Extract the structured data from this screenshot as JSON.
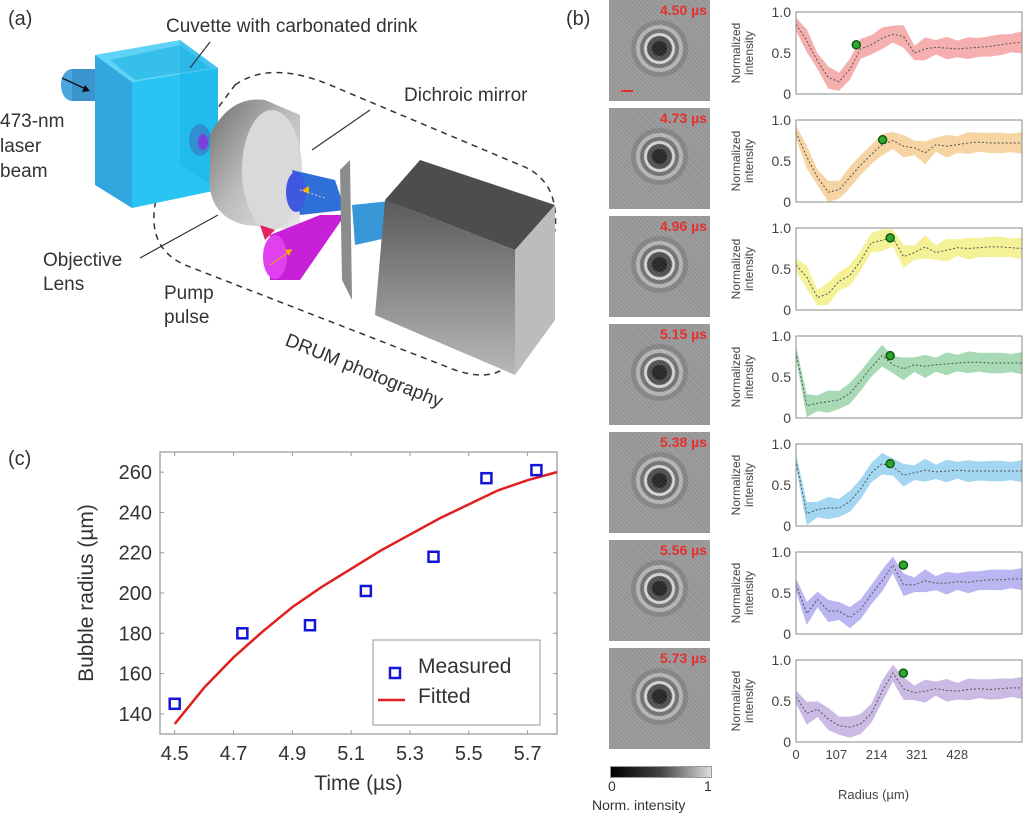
{
  "panel_a": {
    "label": "(a)",
    "callouts": {
      "cuvette": "Cuvette with carbonated drink",
      "laser_line1": "473-nm",
      "laser_line2": "laser",
      "laser_line3": "beam",
      "dichroic": "Dichroic mirror",
      "objective_line1": "Objective",
      "objective_line2": "Lens",
      "pump_line1": "Pump",
      "pump_line2": "pulse",
      "drum": "DRUM photography"
    },
    "colors": {
      "cuvette": "#29c4f2",
      "pump": "#d21ee0",
      "camera": "#7a7a7a",
      "beam": "#3aa0dc"
    }
  },
  "panel_b": {
    "label": "(b)",
    "ylabel_line1": "Normalized",
    "ylabel_line2": "intensity",
    "yticks": [
      "0",
      "0.5",
      "1.0"
    ],
    "xticks": [
      "0",
      "107",
      "214",
      "321",
      "428"
    ],
    "xlabel": "Radius (µm)",
    "colorbar": {
      "min": "0",
      "max": "1",
      "label": "Norm. intensity"
    },
    "rows": [
      {
        "time": "4.50 µs",
        "color": "#f4a6a6",
        "peak_radius": 160,
        "peak_value": 0.6,
        "profile": [
          0.85,
          0.65,
          0.4,
          0.2,
          0.15,
          0.3,
          0.55,
          0.6,
          0.68,
          0.73,
          0.7,
          0.5,
          0.55,
          0.57,
          0.56,
          0.55,
          0.56,
          0.57,
          0.58,
          0.6,
          0.62,
          0.63
        ]
      },
      {
        "time": "4.73 µs",
        "color": "#f5cf9a",
        "peak_radius": 230,
        "peak_value": 0.76,
        "profile": [
          0.85,
          0.55,
          0.3,
          0.12,
          0.15,
          0.3,
          0.45,
          0.58,
          0.7,
          0.75,
          0.68,
          0.66,
          0.6,
          0.7,
          0.68,
          0.7,
          0.72,
          0.73,
          0.72,
          0.72,
          0.72,
          0.72
        ]
      },
      {
        "time": "4.96 µs",
        "color": "#f3ef8c",
        "peak_radius": 250,
        "peak_value": 0.88,
        "profile": [
          0.55,
          0.4,
          0.15,
          0.2,
          0.35,
          0.42,
          0.6,
          0.82,
          0.85,
          0.88,
          0.65,
          0.7,
          0.77,
          0.7,
          0.73,
          0.76,
          0.75,
          0.76,
          0.77,
          0.77,
          0.76,
          0.75
        ]
      },
      {
        "time": "5.15 µs",
        "color": "#9fd6ae",
        "peak_radius": 250,
        "peak_value": 0.76,
        "profile": [
          0.8,
          0.15,
          0.18,
          0.2,
          0.22,
          0.3,
          0.45,
          0.62,
          0.76,
          0.65,
          0.6,
          0.65,
          0.63,
          0.65,
          0.66,
          0.67,
          0.68,
          0.68,
          0.67,
          0.67,
          0.67,
          0.67
        ]
      },
      {
        "time": "5.38 µs",
        "color": "#99d1ee",
        "peak_radius": 250,
        "peak_value": 0.76,
        "profile": [
          0.8,
          0.15,
          0.2,
          0.22,
          0.22,
          0.3,
          0.45,
          0.65,
          0.76,
          0.72,
          0.62,
          0.65,
          0.68,
          0.66,
          0.67,
          0.68,
          0.67,
          0.67,
          0.67,
          0.67,
          0.67,
          0.67
        ]
      },
      {
        "time": "5.56 µs",
        "color": "#b4aef0",
        "peak_radius": 285,
        "peak_value": 0.84,
        "profile": [
          0.6,
          0.25,
          0.42,
          0.28,
          0.28,
          0.2,
          0.3,
          0.48,
          0.65,
          0.84,
          0.6,
          0.6,
          0.65,
          0.62,
          0.62,
          0.64,
          0.63,
          0.65,
          0.66,
          0.66,
          0.67,
          0.67
        ]
      },
      {
        "time": "5.73 µs",
        "color": "#c5b3e0",
        "peak_radius": 285,
        "peak_value": 0.84,
        "profile": [
          0.55,
          0.35,
          0.4,
          0.28,
          0.2,
          0.18,
          0.22,
          0.35,
          0.62,
          0.84,
          0.65,
          0.6,
          0.62,
          0.65,
          0.63,
          0.62,
          0.64,
          0.65,
          0.64,
          0.65,
          0.66,
          0.66
        ]
      }
    ]
  },
  "chart_data": [
    {
      "type": "scatter",
      "title": "",
      "panel": "(c)",
      "xlabel": "Time (µs)",
      "ylabel": "Bubble radius (µm)",
      "xlim": [
        4.45,
        5.8
      ],
      "ylim": [
        130,
        270
      ],
      "xticks": [
        "4.5",
        "4.7",
        "4.9",
        "5.1",
        "5.3",
        "5.5",
        "5.7"
      ],
      "yticks": [
        "140",
        "160",
        "180",
        "200",
        "220",
        "240",
        "260"
      ],
      "legend": {
        "position": "bottom-right",
        "entries": [
          "Measured",
          "Fitted"
        ]
      },
      "series": [
        {
          "name": "Measured",
          "kind": "markers",
          "color": "#1414d8",
          "x": [
            4.5,
            4.73,
            4.96,
            5.15,
            5.38,
            5.56,
            5.73
          ],
          "y": [
            145,
            180,
            184,
            201,
            218,
            257,
            261
          ]
        },
        {
          "name": "Fitted",
          "kind": "line",
          "color": "#e02020",
          "x": [
            4.5,
            4.6,
            4.7,
            4.8,
            4.9,
            5.0,
            5.1,
            5.2,
            5.3,
            5.4,
            5.5,
            5.6,
            5.7,
            5.8
          ],
          "y": [
            135,
            153,
            168,
            181,
            193,
            203,
            212,
            221,
            229,
            237,
            244,
            251,
            256,
            260
          ]
        }
      ]
    }
  ]
}
